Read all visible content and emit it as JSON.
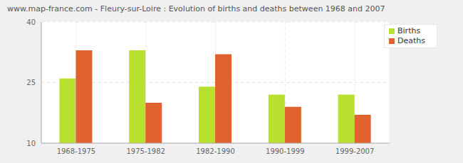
{
  "chart_data": {
    "type": "bar",
    "title": "www.map-france.com - Fleury-sur-Loire : Evolution of births and deaths between 1968 and 2007",
    "categories": [
      "1968-1975",
      "1975-1982",
      "1982-1990",
      "1990-1999",
      "1999-2007"
    ],
    "series": [
      {
        "name": "Births",
        "color": "#b8e02e",
        "values": [
          26,
          33,
          24,
          22,
          22
        ]
      },
      {
        "name": "Deaths",
        "color": "#e0622f",
        "values": [
          33,
          20,
          32,
          19,
          17
        ]
      }
    ],
    "ylim": [
      10,
      40
    ],
    "yticks": [
      10,
      25,
      40
    ],
    "grid": true,
    "legend": "top-right"
  }
}
